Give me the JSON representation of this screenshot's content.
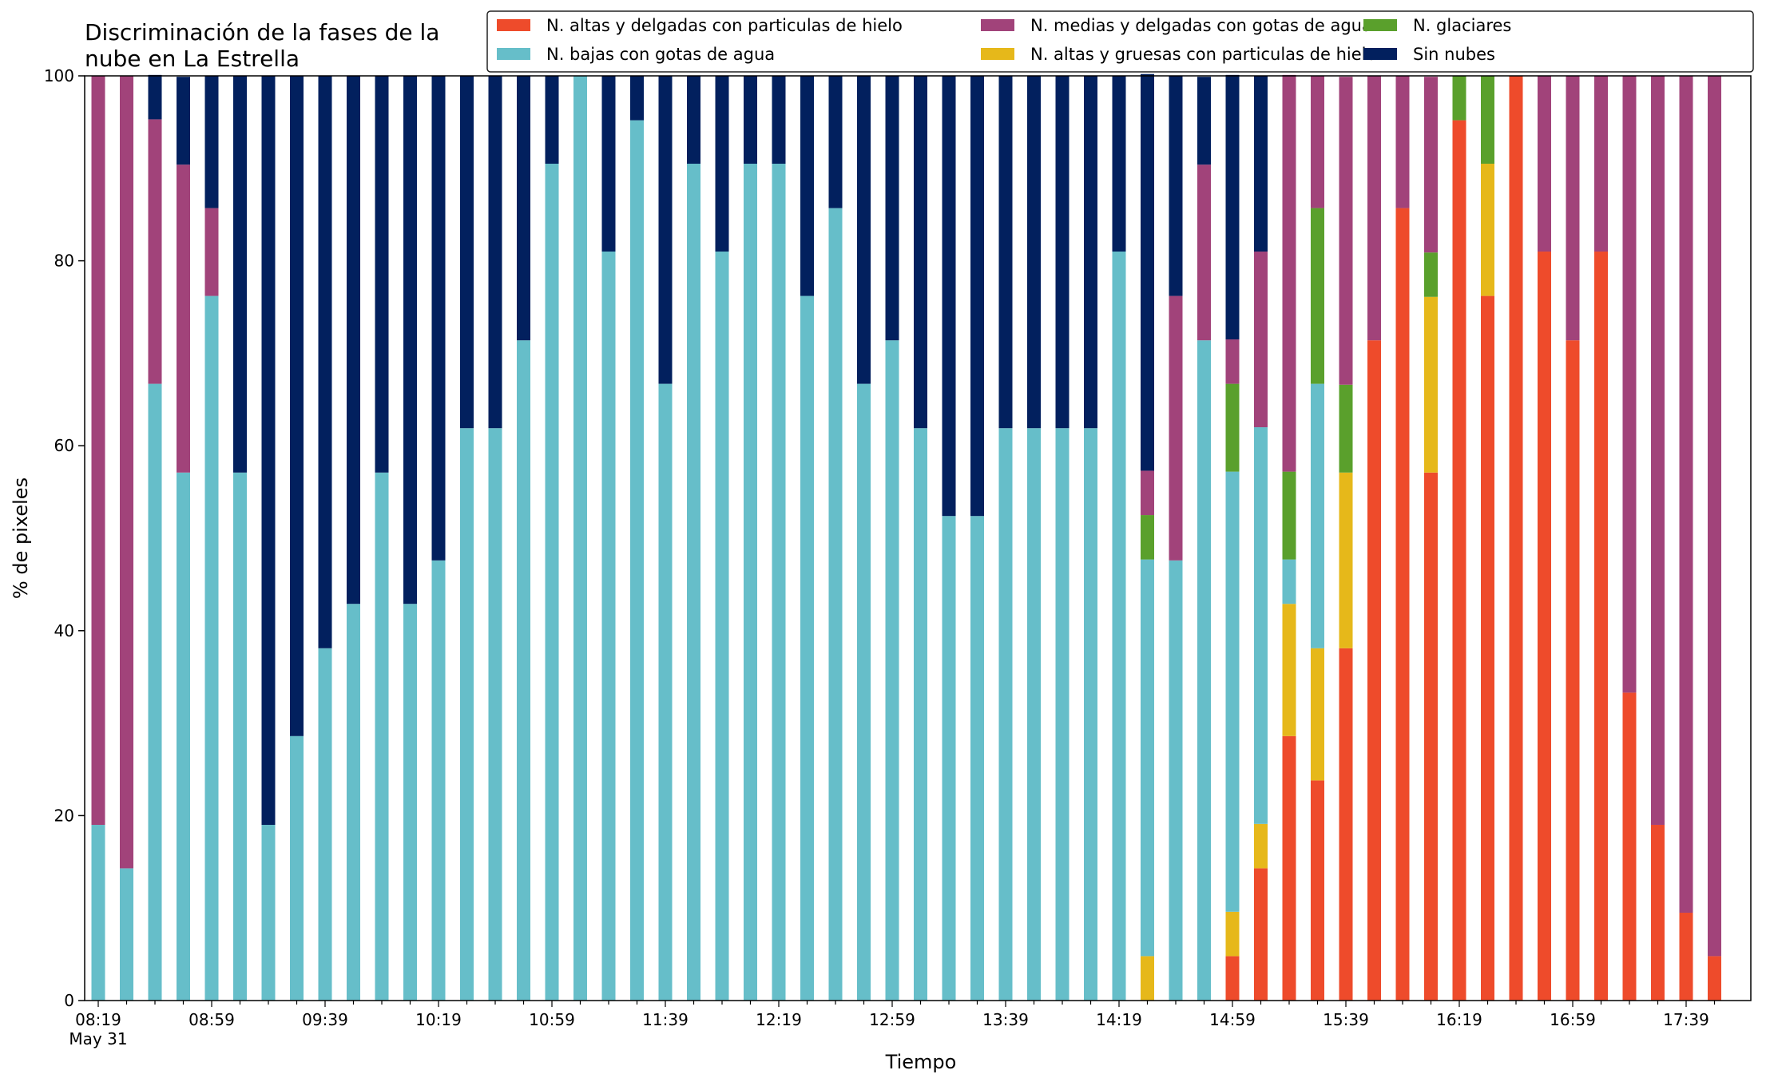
{
  "chart_data": {
    "type": "bar",
    "stacked": true,
    "title_lines": [
      "Discriminación de la fases de la",
      "nube en La Estrella"
    ],
    "xlabel": "Tiempo",
    "ylabel": "% de pixeles",
    "ylim": [
      0,
      100
    ],
    "yticks": [
      0,
      20,
      40,
      60,
      80,
      100
    ],
    "x_tick_labels": [
      "08:19",
      "08:59",
      "09:39",
      "10:19",
      "10:59",
      "11:39",
      "12:19",
      "12:59",
      "13:39",
      "14:19",
      "14:59",
      "15:39",
      "16:19",
      "16:59",
      "17:39"
    ],
    "x_date_label": "May 31",
    "grid": false,
    "legend_position": "top-right",
    "categories": [
      "08:19",
      "08:29",
      "08:39",
      "08:49",
      "08:59",
      "09:09",
      "09:19",
      "09:29",
      "09:39",
      "09:49",
      "09:59",
      "10:09",
      "10:19",
      "10:29",
      "10:39",
      "10:49",
      "10:59",
      "11:09",
      "11:19",
      "11:29",
      "11:39",
      "11:49",
      "11:59",
      "12:09",
      "12:19",
      "12:29",
      "12:39",
      "12:49",
      "12:59",
      "13:09",
      "13:19",
      "13:29",
      "13:39",
      "13:49",
      "13:59",
      "14:09",
      "14:19",
      "14:29",
      "14:39",
      "14:49",
      "14:59",
      "15:09",
      "15:19",
      "15:29",
      "15:39",
      "15:49",
      "15:59",
      "16:09",
      "16:19",
      "16:29",
      "16:39",
      "16:49",
      "16:59",
      "17:09",
      "17:19",
      "17:29",
      "17:39",
      "17:49"
    ],
    "series": [
      {
        "name": "N. altas y delgadas con particulas de hielo",
        "color": "#ee4b2b",
        "values": [
          0,
          0,
          0,
          0,
          0,
          0,
          0,
          0,
          0,
          0,
          0,
          0,
          0,
          0,
          0,
          0,
          0,
          0,
          0,
          0,
          0,
          0,
          0,
          0,
          0,
          0,
          0,
          0,
          0,
          0,
          0,
          0,
          0,
          0,
          0,
          0,
          0,
          0,
          0,
          0,
          4.8,
          14.3,
          28.6,
          23.8,
          38.1,
          71.4,
          85.7,
          57.1,
          95.2,
          76.2,
          100,
          81,
          71.4,
          81,
          33.3,
          19,
          9.5,
          4.8
        ]
      },
      {
        "name": "N. altas y gruesas con particulas de hielo",
        "color": "#e6b81a",
        "values": [
          0,
          0,
          0,
          0,
          0,
          0,
          0,
          0,
          0,
          0,
          0,
          0,
          0,
          0,
          0,
          0,
          0,
          0,
          0,
          0,
          0,
          0,
          0,
          0,
          0,
          0,
          0,
          0,
          0,
          0,
          0,
          0,
          0,
          0,
          0,
          0,
          0,
          4.8,
          0,
          0,
          4.8,
          4.8,
          14.3,
          14.3,
          19,
          0,
          0,
          19,
          0,
          14.3,
          0,
          0,
          0,
          0,
          0,
          0,
          0,
          0
        ]
      },
      {
        "name": "N. bajas con gotas de agua",
        "color": "#66bec9",
        "values": [
          19,
          14.3,
          66.7,
          57.1,
          76.2,
          57.1,
          19,
          28.6,
          38.1,
          42.9,
          57.1,
          42.9,
          47.6,
          61.9,
          61.9,
          71.4,
          90.5,
          100,
          81,
          95.2,
          66.7,
          90.5,
          81,
          90.5,
          90.5,
          76.2,
          85.7,
          66.7,
          71.4,
          61.9,
          52.4,
          52.4,
          61.9,
          61.9,
          61.9,
          61.9,
          81,
          42.9,
          47.6,
          71.4,
          47.6,
          42.9,
          4.8,
          28.6,
          0,
          0,
          0,
          0,
          0,
          0,
          0,
          0,
          0,
          0,
          0,
          0,
          0,
          0
        ]
      },
      {
        "name": "N. glaciares",
        "color": "#5aa02c",
        "values": [
          0,
          0,
          0,
          0,
          0,
          0,
          0,
          0,
          0,
          0,
          0,
          0,
          0,
          0,
          0,
          0,
          0,
          0,
          0,
          0,
          0,
          0,
          0,
          0,
          0,
          0,
          0,
          0,
          0,
          0,
          0,
          0,
          0,
          0,
          0,
          0,
          0,
          4.8,
          0,
          0,
          9.5,
          0,
          9.5,
          19,
          9.5,
          0,
          0,
          4.8,
          4.8,
          9.5,
          0,
          0,
          0,
          0,
          0,
          0,
          0,
          0
        ]
      },
      {
        "name": "N. medias y delgadas con gotas de agua",
        "color": "#a1437a",
        "values": [
          81,
          85.7,
          28.6,
          33.3,
          9.5,
          0,
          0,
          0,
          0,
          0,
          0,
          0,
          0,
          0,
          0,
          0,
          0,
          0,
          0,
          0,
          0,
          0,
          0,
          0,
          0,
          0,
          0,
          0,
          0,
          0,
          0,
          0,
          0,
          0,
          0,
          0,
          0,
          4.8,
          28.6,
          19,
          4.8,
          19,
          42.9,
          14.3,
          33.3,
          28.6,
          14.3,
          19,
          0,
          0,
          0,
          19,
          28.6,
          19,
          66.7,
          81,
          90.5,
          95.2
        ]
      },
      {
        "name": "Sin nubes",
        "color": "#02205e",
        "values": [
          0,
          0,
          4.8,
          9.5,
          14.3,
          42.9,
          81,
          71.4,
          61.9,
          57.1,
          42.9,
          57.1,
          52.4,
          38.1,
          38.1,
          28.6,
          9.5,
          0,
          19,
          4.8,
          33.3,
          9.5,
          19,
          9.5,
          9.5,
          23.8,
          14.3,
          33.3,
          28.6,
          38.1,
          47.6,
          47.6,
          38.1,
          38.1,
          38.1,
          38.1,
          19,
          42.9,
          23.8,
          9.5,
          28.6,
          19,
          0,
          0,
          0,
          0,
          0,
          0,
          0,
          0,
          0,
          0,
          0,
          0,
          0,
          0,
          0,
          0
        ]
      }
    ],
    "legend_order": [
      0,
      2,
      4,
      1,
      3,
      5
    ]
  }
}
